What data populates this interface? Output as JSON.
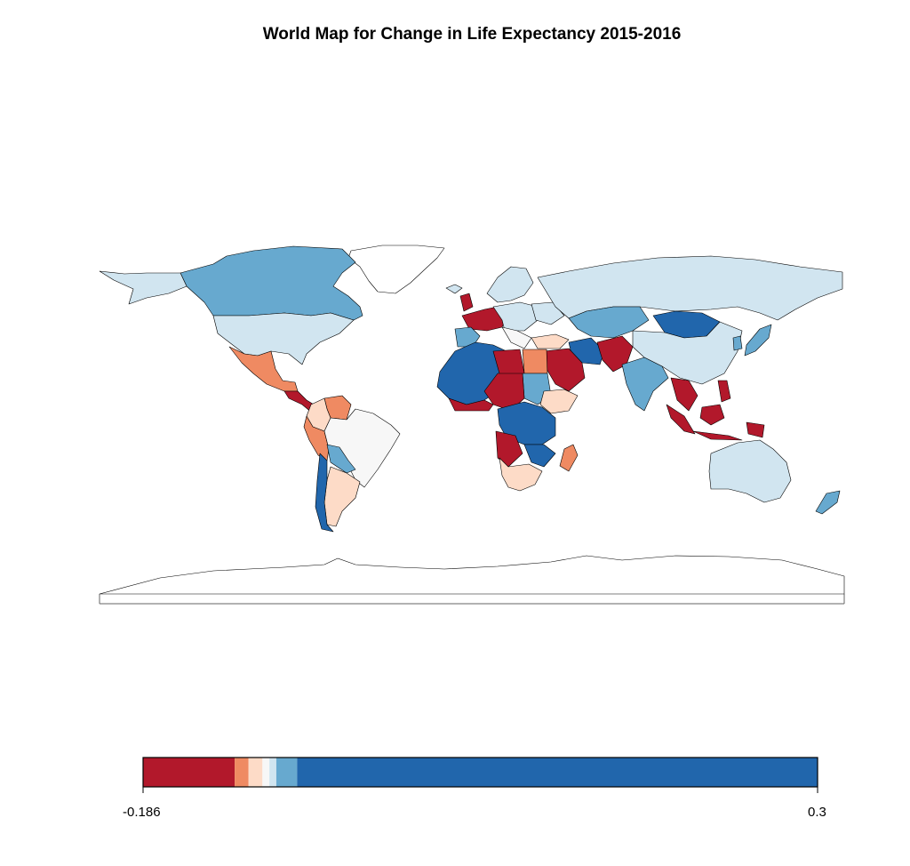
{
  "title": "World Map for Change in Life Expectancy 2015-2016",
  "palette": {
    "dark_red": "#b2182b",
    "orange": "#ef8a62",
    "peach": "#fddbc7",
    "near_white": "#f7f7f7",
    "light_blue": "#d1e5f0",
    "mid_blue": "#67a9cf",
    "dark_blue": "#2166ac",
    "no_data": "#ffffff",
    "outline": "#000000"
  },
  "legend": {
    "min_label": "-0.186",
    "max_label": "0.3",
    "bins": [
      {
        "from": -0.186,
        "to": -0.12,
        "color": "#b2182b"
      },
      {
        "from": -0.12,
        "to": -0.11,
        "color": "#ef8a62"
      },
      {
        "from": -0.11,
        "to": -0.1,
        "color": "#fddbc7"
      },
      {
        "from": -0.1,
        "to": -0.095,
        "color": "#f7f7f7"
      },
      {
        "from": -0.095,
        "to": -0.09,
        "color": "#d1e5f0"
      },
      {
        "from": -0.09,
        "to": -0.075,
        "color": "#67a9cf"
      },
      {
        "from": -0.075,
        "to": 0.3,
        "color": "#2166ac"
      }
    ]
  },
  "regions": [
    {
      "name": "Canada",
      "color": "#67a9cf"
    },
    {
      "name": "Greenland",
      "color": "#ffffff"
    },
    {
      "name": "United States",
      "color": "#d1e5f0"
    },
    {
      "name": "Mexico",
      "color": "#ef8a62"
    },
    {
      "name": "Central America",
      "color": "#b2182b"
    },
    {
      "name": "Venezuela",
      "color": "#ef8a62"
    },
    {
      "name": "Colombia",
      "color": "#fddbc7"
    },
    {
      "name": "Peru",
      "color": "#ef8a62"
    },
    {
      "name": "Brazil",
      "color": "#f7f7f7"
    },
    {
      "name": "Bolivia",
      "color": "#67a9cf"
    },
    {
      "name": "Argentina",
      "color": "#fddbc7"
    },
    {
      "name": "Chile",
      "color": "#2166ac"
    },
    {
      "name": "Western Europe",
      "color": "#b2182b"
    },
    {
      "name": "Scandinavia",
      "color": "#d1e5f0"
    },
    {
      "name": "Iberia",
      "color": "#67a9cf"
    },
    {
      "name": "Russia",
      "color": "#d1e5f0"
    },
    {
      "name": "Kazakhstan",
      "color": "#67a9cf"
    },
    {
      "name": "Mongolia",
      "color": "#2166ac"
    },
    {
      "name": "China",
      "color": "#d1e5f0"
    },
    {
      "name": "Iran",
      "color": "#2166ac"
    },
    {
      "name": "Afghanistan",
      "color": "#b2182b"
    },
    {
      "name": "Arabia",
      "color": "#b2182b"
    },
    {
      "name": "India",
      "color": "#67a9cf"
    },
    {
      "name": "Japan",
      "color": "#67a9cf"
    },
    {
      "name": "Indochina",
      "color": "#b2182b"
    },
    {
      "name": "Indonesia",
      "color": "#b2182b"
    },
    {
      "name": "Australia",
      "color": "#d1e5f0"
    },
    {
      "name": "New Zealand",
      "color": "#67a9cf"
    },
    {
      "name": "North-West Africa",
      "color": "#2166ac"
    },
    {
      "name": "Libya",
      "color": "#b2182b"
    },
    {
      "name": "Egypt",
      "color": "#ef8a62"
    },
    {
      "name": "Sudan",
      "color": "#67a9cf"
    },
    {
      "name": "Ethiopia",
      "color": "#fddbc7"
    },
    {
      "name": "Central Africa",
      "color": "#2166ac"
    },
    {
      "name": "Angola",
      "color": "#b2182b"
    },
    {
      "name": "South Africa",
      "color": "#fddbc7"
    },
    {
      "name": "Madagascar",
      "color": "#ef8a62"
    },
    {
      "name": "Antarctica",
      "color": "#ffffff"
    }
  ]
}
